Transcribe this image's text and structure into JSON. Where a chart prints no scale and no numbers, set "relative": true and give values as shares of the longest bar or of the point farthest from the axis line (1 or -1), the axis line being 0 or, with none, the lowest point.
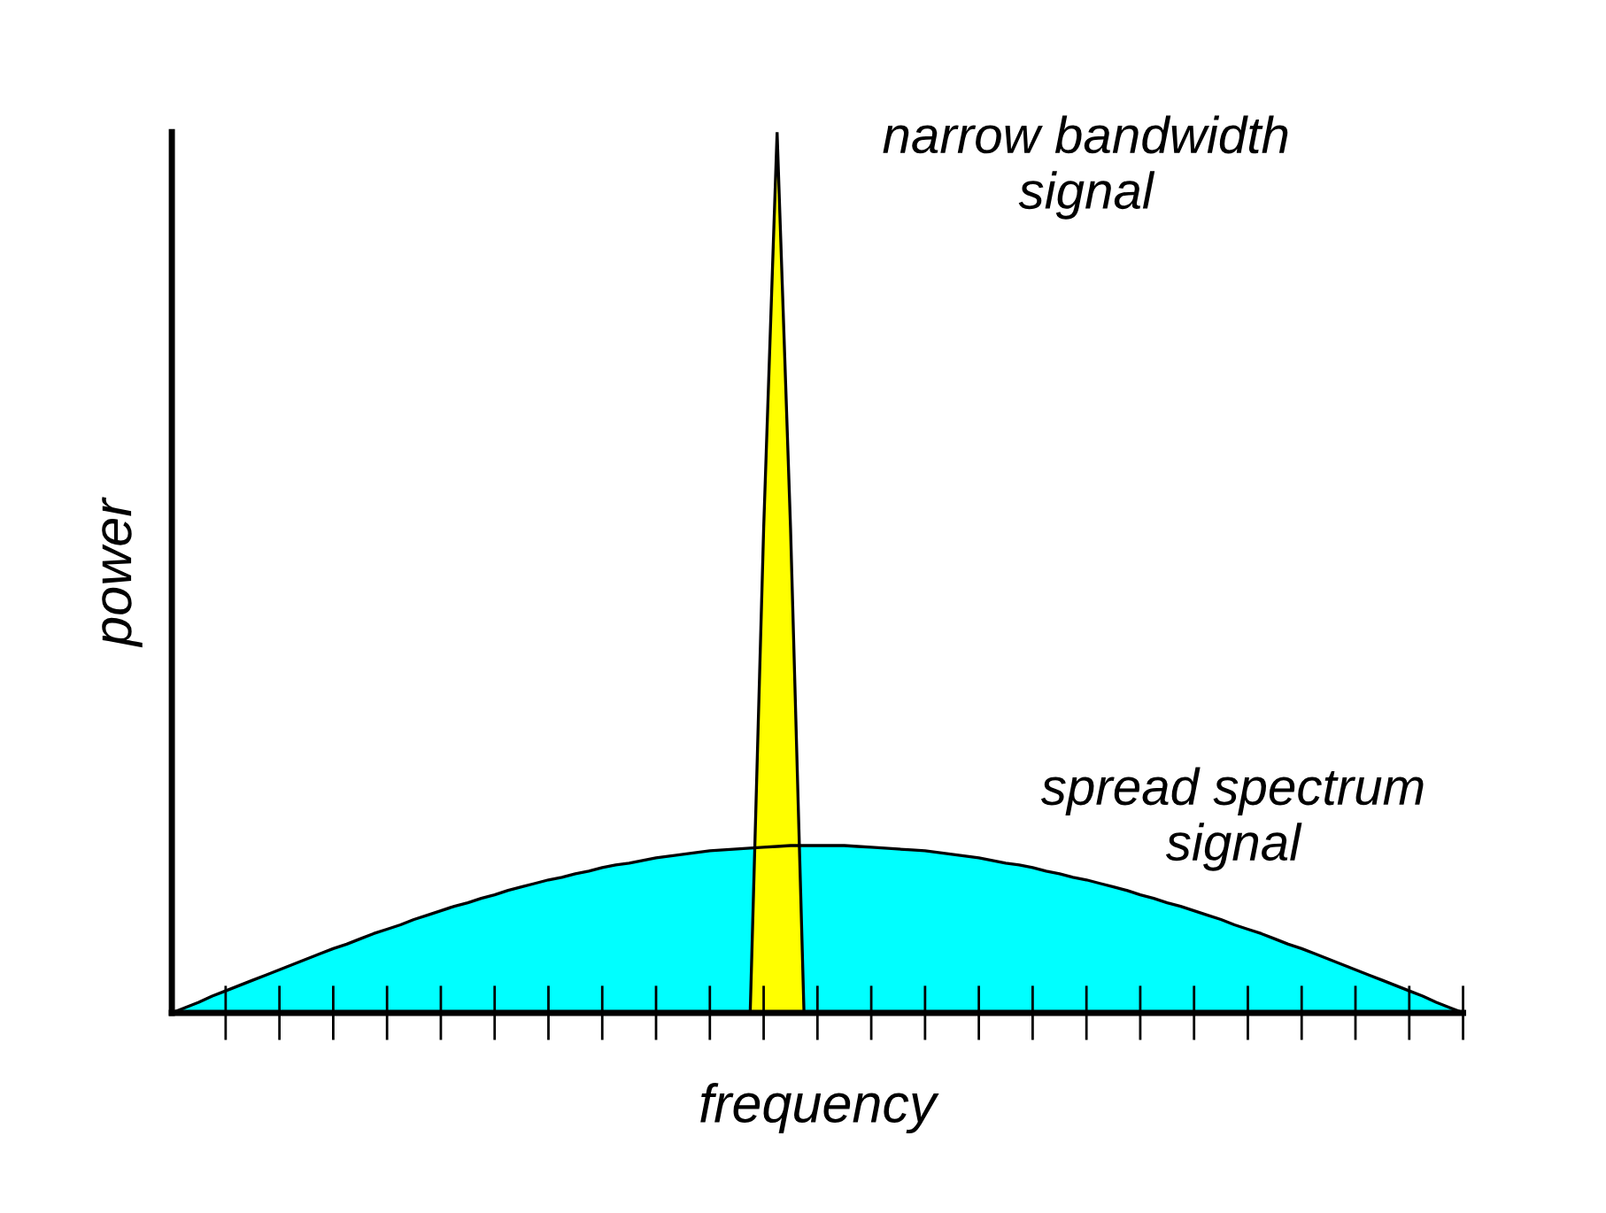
{
  "chart_data": {
    "type": "area",
    "relative": true,
    "xlabel": "frequency",
    "ylabel": "power",
    "categories": [
      null,
      null,
      null,
      null,
      null,
      null,
      null,
      null,
      null,
      null,
      null,
      null,
      null,
      null,
      null,
      null,
      null,
      null,
      null,
      null,
      null,
      null,
      null,
      null,
      null,
      null,
      null,
      null,
      null,
      null,
      null,
      null,
      null,
      null,
      null,
      null,
      null,
      null,
      null,
      null,
      null,
      null,
      null,
      null,
      null,
      null,
      null,
      null,
      null,
      null,
      null,
      null,
      null,
      null,
      null,
      null,
      null,
      null,
      null,
      null,
      null,
      null,
      null,
      null,
      null,
      null,
      null,
      null,
      null,
      null,
      null,
      null,
      null,
      null,
      null,
      null,
      null,
      null,
      null,
      null,
      null,
      null,
      null,
      null,
      null,
      null,
      null,
      null,
      null,
      null,
      null,
      null,
      null,
      null,
      null,
      null,
      null
    ],
    "series": [
      {
        "color": "#00ffff",
        "values": [
          0,
          0.006,
          0.012,
          0.019,
          0.025,
          0.031,
          0.037,
          0.043,
          0.049,
          0.055,
          0.061,
          0.067,
          0.073,
          0.078,
          0.084,
          0.09,
          0.095,
          0.1,
          0.106,
          0.111,
          0.116,
          0.121,
          0.125,
          0.13,
          0.134,
          0.139,
          0.143,
          0.147,
          0.151,
          0.154,
          0.158,
          0.161,
          0.165,
          0.168,
          0.17,
          0.173,
          0.176,
          0.178,
          0.18,
          0.182,
          0.184,
          0.185,
          0.186,
          0.187,
          0.188,
          0.189,
          0.19,
          0.19,
          0.19,
          0.19,
          0.19,
          0.189,
          0.188,
          0.187,
          0.186,
          0.185,
          0.184,
          0.182,
          0.18,
          0.178,
          0.176,
          0.173,
          0.17,
          0.168,
          0.165,
          0.161,
          0.158,
          0.154,
          0.151,
          0.147,
          0.143,
          0.139,
          0.134,
          0.13,
          0.125,
          0.121,
          0.116,
          0.111,
          0.106,
          0.1,
          0.095,
          0.09,
          0.084,
          0.078,
          0.073,
          0.067,
          0.061,
          0.055,
          0.049,
          0.043,
          0.037,
          0.031,
          0.025,
          0.019,
          0.012,
          0.006,
          0
        ]
      },
      {
        "color": "#ffff00",
        "values": [
          null,
          null,
          null,
          null,
          null,
          null,
          null,
          null,
          null,
          null,
          null,
          null,
          null,
          null,
          null,
          null,
          null,
          null,
          null,
          null,
          null,
          null,
          null,
          null,
          null,
          null,
          null,
          null,
          null,
          null,
          null,
          null,
          null,
          null,
          null,
          null,
          null,
          null,
          null,
          null,
          null,
          null,
          null,
          0,
          0.55,
          1.0,
          0.55,
          0,
          null,
          null,
          null,
          null,
          null,
          null,
          null,
          null,
          null,
          null,
          null,
          null,
          null,
          null,
          null,
          null,
          null,
          null,
          null,
          null,
          null,
          null,
          null,
          null,
          null,
          null,
          null,
          null,
          null,
          null,
          null,
          null,
          null,
          null,
          null,
          null,
          null,
          null,
          null,
          null,
          null,
          null,
          null,
          null,
          null,
          null,
          null,
          null,
          null
        ]
      }
    ],
    "annotations": [
      "narrow bandwidth\nsignal",
      "spread spectrum\nsignal"
    ]
  }
}
